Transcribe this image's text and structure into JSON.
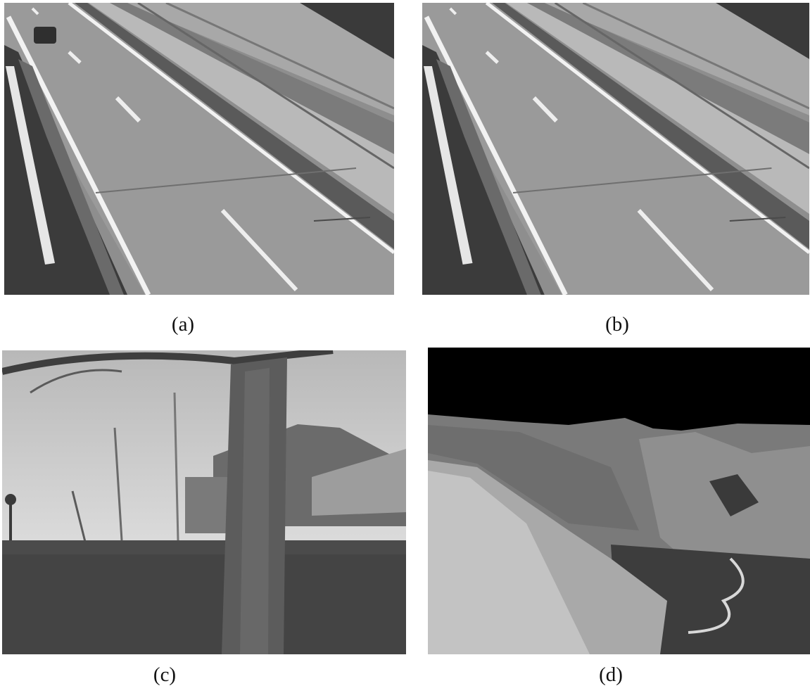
{
  "figure": {
    "panels": [
      {
        "id": "a",
        "caption": "(a)",
        "scene": "highway-with-car"
      },
      {
        "id": "b",
        "caption": "(b)",
        "scene": "highway-empty"
      },
      {
        "id": "c",
        "caption": "(c)",
        "scene": "tree-and-house"
      },
      {
        "id": "d",
        "caption": "(d)",
        "scene": "mountain-terrain"
      }
    ]
  }
}
